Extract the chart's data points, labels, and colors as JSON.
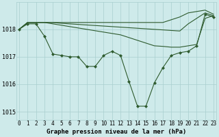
{
  "title": "Graphe pression niveau de la mer (hPa)",
  "background_color": "#ceeaea",
  "grid_color": "#a8cece",
  "line_color": "#2d5a2d",
  "hours": [
    0,
    1,
    2,
    3,
    4,
    5,
    6,
    7,
    8,
    9,
    10,
    11,
    12,
    13,
    14,
    15,
    16,
    17,
    18,
    19,
    20,
    21,
    22,
    23
  ],
  "line_main": [
    1018.0,
    1018.2,
    1018.2,
    1017.75,
    1017.1,
    1017.05,
    1017.0,
    1017.0,
    1016.65,
    1016.65,
    1017.05,
    1017.2,
    1017.05,
    1016.1,
    1015.2,
    1015.2,
    1016.05,
    1016.6,
    1017.05,
    1017.15,
    1017.2,
    1017.4,
    1018.55,
    1018.45
  ],
  "line_upper1": [
    1018.0,
    1018.25,
    1018.25,
    1018.25,
    1018.25,
    1018.25,
    1018.25,
    1018.25,
    1018.25,
    1018.25,
    1018.25,
    1018.25,
    1018.25,
    1018.25,
    1018.25,
    1018.25,
    1018.25,
    1018.25,
    1018.35,
    1018.45,
    1018.6,
    1018.65,
    1018.7,
    1018.55
  ],
  "line_upper2": [
    1018.0,
    1018.25,
    1018.25,
    1018.25,
    1018.25,
    1018.22,
    1018.2,
    1018.18,
    1018.16,
    1018.14,
    1018.12,
    1018.1,
    1018.08,
    1018.06,
    1018.04,
    1018.02,
    1018.0,
    1017.98,
    1017.96,
    1017.94,
    1018.2,
    1018.4,
    1018.6,
    1018.5
  ],
  "line_lower": [
    1018.0,
    1018.25,
    1018.25,
    1018.25,
    1018.2,
    1018.15,
    1018.1,
    1018.05,
    1018.0,
    1017.95,
    1017.9,
    1017.85,
    1017.8,
    1017.7,
    1017.6,
    1017.5,
    1017.4,
    1017.38,
    1017.35,
    1017.35,
    1017.4,
    1017.45,
    1018.4,
    1018.5
  ],
  "ylim": [
    1014.7,
    1019.0
  ],
  "yticks": [
    1015,
    1016,
    1017,
    1018
  ]
}
